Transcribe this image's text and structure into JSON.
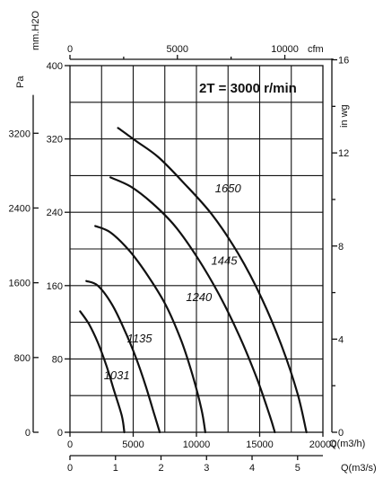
{
  "chart_data": {
    "type": "line",
    "title": "2T = 3000 r/min",
    "x_main": {
      "label": "Q(m3/h)",
      "ticks": [
        0,
        5000,
        10000,
        15000,
        20000
      ],
      "tick_labels": [
        "0",
        "5000",
        "10000",
        "15000",
        "20000"
      ],
      "range": [
        0,
        20000
      ]
    },
    "x_ms": {
      "label": "Q(m3/s)",
      "ticks": [
        0,
        1,
        2,
        3,
        4,
        5
      ],
      "tick_labels": [
        "0",
        "1",
        "2",
        "3",
        "4",
        "5"
      ],
      "range": [
        0,
        5.556
      ]
    },
    "x_cfm": {
      "label": "cfm",
      "ticks": [
        0,
        5000,
        10000
      ],
      "tick_labels": [
        "0",
        "5000",
        "10000"
      ],
      "range": [
        0,
        11772
      ]
    },
    "y_mmh2o": {
      "label": "mm.H2O",
      "ticks": [
        0,
        80,
        160,
        240,
        320,
        400
      ],
      "tick_labels": [
        "0",
        "80",
        "160",
        "240",
        "320",
        "400"
      ],
      "range": [
        0,
        400
      ]
    },
    "y_pa": {
      "label": "Pa",
      "ticks": [
        0,
        800,
        1600,
        2400,
        3200
      ],
      "tick_labels": [
        "0",
        "800",
        "1600",
        "2400",
        "3200"
      ],
      "range": [
        0,
        3924
      ]
    },
    "y_inwg": {
      "label": "in wg",
      "ticks": [
        0,
        4,
        8,
        12,
        16
      ],
      "tick_labels": [
        "0",
        "4",
        "8",
        "12",
        "16"
      ],
      "range": [
        0,
        15.75
      ]
    },
    "grid": true,
    "series": [
      {
        "name": "1031",
        "label_at": [
          3700,
          58
        ],
        "points": [
          [
            800,
            132
          ],
          [
            1500,
            118
          ],
          [
            2200,
            98
          ],
          [
            2900,
            72
          ],
          [
            3500,
            45
          ],
          [
            4100,
            18
          ],
          [
            4300,
            0
          ]
        ]
      },
      {
        "name": "1135",
        "label_at": [
          5500,
          98
        ],
        "points": [
          [
            1300,
            165
          ],
          [
            2200,
            160
          ],
          [
            3300,
            140
          ],
          [
            4300,
            112
          ],
          [
            5200,
            82
          ],
          [
            6000,
            50
          ],
          [
            6700,
            18
          ],
          [
            7100,
            0
          ]
        ]
      },
      {
        "name": "1240",
        "label_at": [
          10200,
          143
        ],
        "points": [
          [
            2000,
            225
          ],
          [
            3200,
            218
          ],
          [
            4700,
            198
          ],
          [
            6200,
            170
          ],
          [
            7600,
            138
          ],
          [
            8800,
            100
          ],
          [
            9700,
            62
          ],
          [
            10400,
            25
          ],
          [
            10700,
            0
          ]
        ]
      },
      {
        "name": "1445",
        "label_at": [
          12200,
          183
        ],
        "points": [
          [
            3200,
            278
          ],
          [
            4800,
            268
          ],
          [
            6500,
            250
          ],
          [
            8300,
            225
          ],
          [
            10100,
            190
          ],
          [
            11800,
            150
          ],
          [
            13400,
            105
          ],
          [
            14800,
            58
          ],
          [
            15800,
            18
          ],
          [
            16200,
            0
          ]
        ]
      },
      {
        "name": "1650",
        "label_at": [
          12500,
          262
        ],
        "points": [
          [
            3800,
            332
          ],
          [
            5200,
            318
          ],
          [
            7000,
            300
          ],
          [
            9000,
            272
          ],
          [
            11200,
            238
          ],
          [
            13300,
            195
          ],
          [
            15200,
            145
          ],
          [
            16800,
            92
          ],
          [
            18000,
            42
          ],
          [
            18700,
            0
          ]
        ]
      }
    ]
  }
}
